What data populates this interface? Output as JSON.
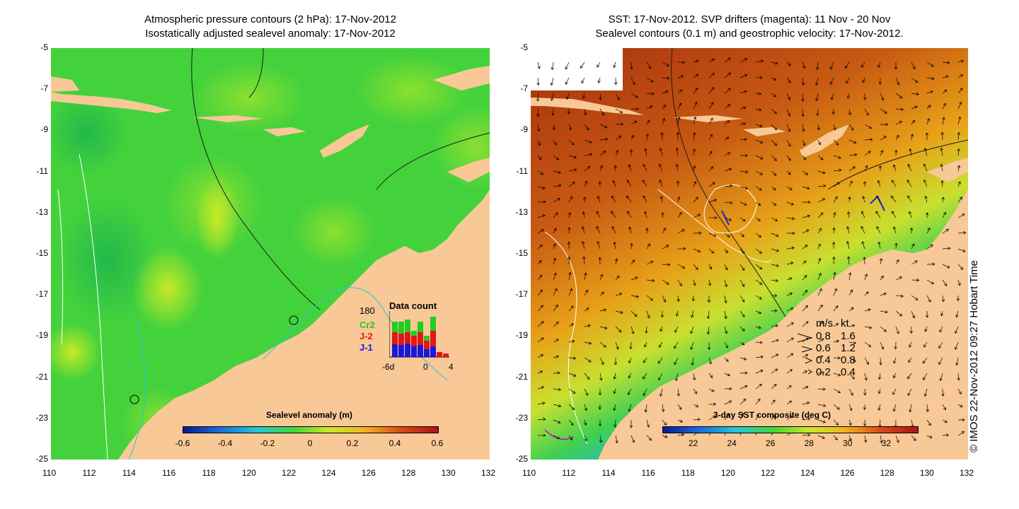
{
  "left_panel": {
    "title_line1": "Atmospheric pressure contours (2 hPa): 17-Nov-2012",
    "title_line2": "Isostatically adjusted sealevel anomaly: 17-Nov-2012",
    "colorbar": {
      "title": "Sealevel anomaly (m)",
      "ticks": [
        "-0.6",
        "-0.4",
        "-0.2",
        "0",
        "0.2",
        "0.4",
        "0.6"
      ],
      "colors": [
        "#0a1a8c",
        "#1a6be0",
        "#22c8d8",
        "#3fd43a",
        "#c8e828",
        "#f0b41e",
        "#d84a14",
        "#b0101a"
      ]
    },
    "data_count": {
      "title": "Data count",
      "ymax_label": "180",
      "xlabels": [
        "-6d",
        "0",
        "4"
      ],
      "series": [
        {
          "name": "Cr2",
          "color": "#22cc22"
        },
        {
          "name": "J-2",
          "color": "#e01818"
        },
        {
          "name": "J-1",
          "color": "#1818e0"
        }
      ]
    }
  },
  "right_panel": {
    "title_line1": "SST: 17-Nov-2012. SVP drifters (magenta): 11 Nov - 20 Nov",
    "title_line2": "Sealevel contours (0.1 m) and geostrophic velocity: 17-Nov-2012.",
    "colorbar": {
      "title": "3-day SST composite (deg C)",
      "ticks": [
        "22",
        "24",
        "26",
        "28",
        "30",
        "32"
      ],
      "colors": [
        "#0a1a8c",
        "#1a6be0",
        "#22c8d8",
        "#3fd43a",
        "#c8e828",
        "#f0b41e",
        "#d84a14",
        "#b0101a"
      ]
    },
    "velocity_legend": {
      "header_ms": "m/s",
      "header_kt": "kt",
      "rows": [
        {
          "ms": "0.8",
          "kt": "1.6"
        },
        {
          "ms": "0.6",
          "kt": "1.2"
        },
        {
          "ms": "0.4",
          "kt": "0.8"
        },
        {
          "ms": "0.2",
          "kt": "0.4"
        }
      ]
    }
  },
  "axes": {
    "x_ticks": [
      "110",
      "112",
      "114",
      "116",
      "118",
      "120",
      "122",
      "124",
      "126",
      "128",
      "130",
      "132"
    ],
    "y_ticks": [
      "-5",
      "-7",
      "-9",
      "-11",
      "-13",
      "-15",
      "-17",
      "-19",
      "-21",
      "-23",
      "-25"
    ]
  },
  "colors": {
    "land": "#f8c896",
    "contour": "#ffffff",
    "shelf_contour": "#20c8d8",
    "drifter": "#c800c8"
  },
  "copyright": "© IMOS 22-Nov-2012 09:27 Hobart Time"
}
